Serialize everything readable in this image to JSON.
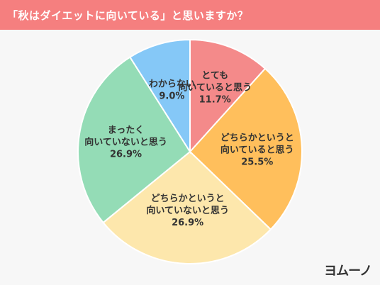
{
  "header": {
    "title": "「秋はダイエットに向いている」と思いますか？"
  },
  "brand": {
    "logo_text": "ヨムーノ",
    "accent_color": "#f57f7f"
  },
  "chart_data": {
    "type": "pie",
    "title": "「秋はダイエットに向いている」と思いますか？",
    "start": "top, clockwise",
    "slices": [
      {
        "label_lines": [
          "とても",
          "向いていると思う"
        ],
        "value": 11.7,
        "value_label": "11.7%",
        "color": "#f48a8a"
      },
      {
        "label_lines": [
          "どちらかというと",
          "向いていると思う"
        ],
        "value": 25.5,
        "value_label": "25.5%",
        "color": "#ffbf5c"
      },
      {
        "label_lines": [
          "どちらかというと",
          "向いていないと思う"
        ],
        "value": 26.9,
        "value_label": "26.9%",
        "color": "#fde7ac"
      },
      {
        "label_lines": [
          "まったく",
          "向いていないと思う"
        ],
        "value": 26.9,
        "value_label": "26.9%",
        "color": "#94dcb6"
      },
      {
        "label_lines": [
          "わからない"
        ],
        "value": 9.0,
        "value_label": "9.0%",
        "color": "#85c8f7"
      }
    ]
  }
}
